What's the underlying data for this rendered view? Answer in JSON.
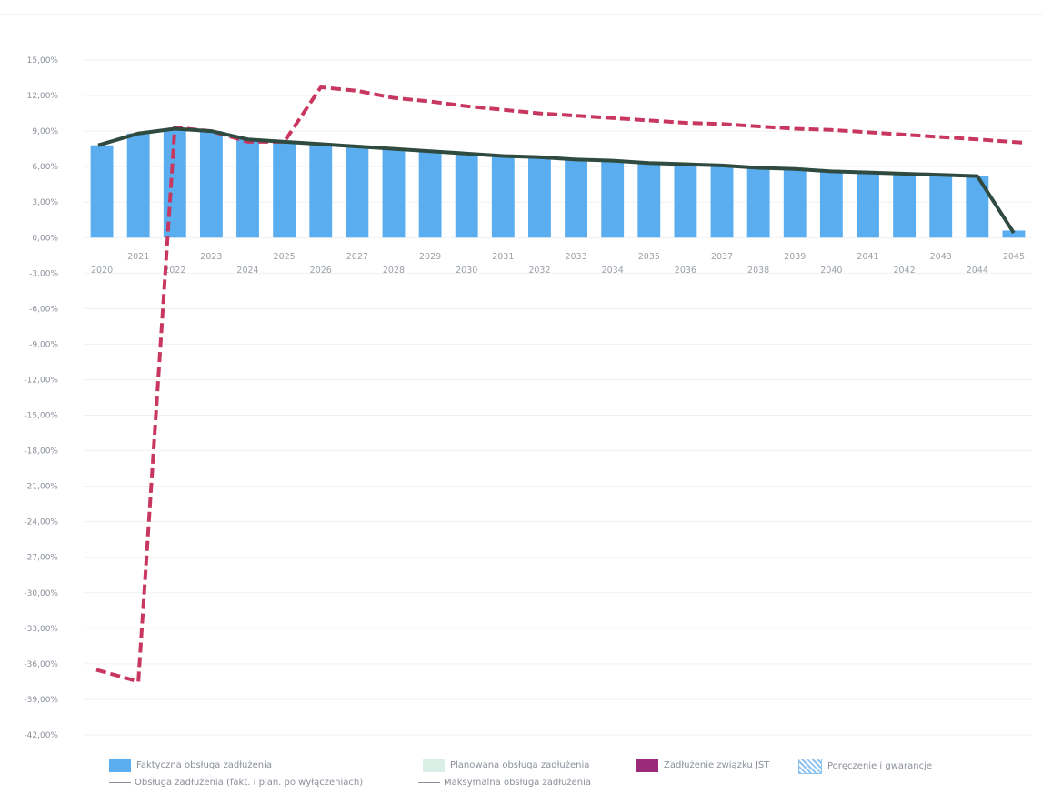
{
  "chart_data": {
    "type": "bar",
    "categories": [
      "2020",
      "2021",
      "2022",
      "2023",
      "2024",
      "2025",
      "2026",
      "2027",
      "2028",
      "2029",
      "2030",
      "2031",
      "2032",
      "2033",
      "2034",
      "2035",
      "2036",
      "2037",
      "2038",
      "2039",
      "2040",
      "2041",
      "2042",
      "2043",
      "2044",
      "2045"
    ],
    "ylim": [
      -42,
      15
    ],
    "yticks": [
      15,
      12,
      9,
      6,
      3,
      0,
      -3,
      -6,
      -9,
      -12,
      -15,
      -18,
      -21,
      -24,
      -27,
      -30,
      -33,
      -36,
      -39,
      -42
    ],
    "ytick_labels": [
      "15,00%",
      "12,00%",
      "9,00%",
      "6,00%",
      "3,00%",
      "0,00%",
      "-3,00%",
      "-6,00%",
      "-9,00%",
      "-12,00%",
      "-15,00%",
      "-18,00%",
      "-21,00%",
      "-24,00%",
      "-27,00%",
      "-30,00%",
      "-33,00%",
      "-36,00%",
      "-39,00%",
      "-42,00%"
    ],
    "series": [
      {
        "name": "Faktyczna obsługa zadłużenia",
        "kind": "bar",
        "color": "#5aaef0",
        "values": [
          7.8,
          8.8,
          9.1,
          9.0,
          8.3,
          8.1,
          7.9,
          7.7,
          7.5,
          7.3,
          7.1,
          6.9,
          6.8,
          6.6,
          6.5,
          6.3,
          6.2,
          6.1,
          5.9,
          5.8,
          5.6,
          5.5,
          5.4,
          5.3,
          5.2,
          0.6
        ]
      },
      {
        "name": "Obsługa zadłużenia (fakt. i plan. po wyłączeniach)",
        "kind": "line",
        "color": "#2f4a3e",
        "values": [
          7.8,
          8.8,
          9.2,
          9.0,
          8.3,
          8.1,
          7.9,
          7.7,
          7.5,
          7.3,
          7.1,
          6.9,
          6.8,
          6.6,
          6.5,
          6.3,
          6.2,
          6.1,
          5.9,
          5.8,
          5.6,
          5.5,
          5.4,
          5.3,
          5.2,
          0.4
        ]
      },
      {
        "name": "Maksymalna obsługa zadłużenia",
        "kind": "line",
        "dashed": true,
        "color": "#c8375f",
        "values": [
          -36.5,
          -37.5,
          9.3,
          9.0,
          8.1,
          8.1,
          12.7,
          12.4,
          11.8,
          11.5,
          11.1,
          10.8,
          10.5,
          10.3,
          10.1,
          9.9,
          9.7,
          9.6,
          9.4,
          9.2,
          9.1,
          8.9,
          8.7,
          8.5,
          8.3,
          8.0
        ]
      }
    ]
  },
  "legend": {
    "items": [
      {
        "label": "Faktyczna obsługa zadłużenia",
        "type": "bar",
        "color": "#5aaef0"
      },
      {
        "label": "Planowana obsługa zadłużenia",
        "type": "bar",
        "color": "#d9eee4"
      },
      {
        "label": "Zadłużenie związku JST",
        "type": "bar",
        "color": "#9b2a7a"
      },
      {
        "label": "Poręczenie i gwarancje",
        "type": "hatch",
        "color": "#8fc3f0"
      },
      {
        "label": "Obsługa zadłużenia (fakt. i plan. po wyłączeniach)",
        "type": "line",
        "color": "#8a8f99"
      },
      {
        "label": "Maksymalna obsługa zadłużenia",
        "type": "line",
        "color": "#8a8f99"
      }
    ]
  }
}
